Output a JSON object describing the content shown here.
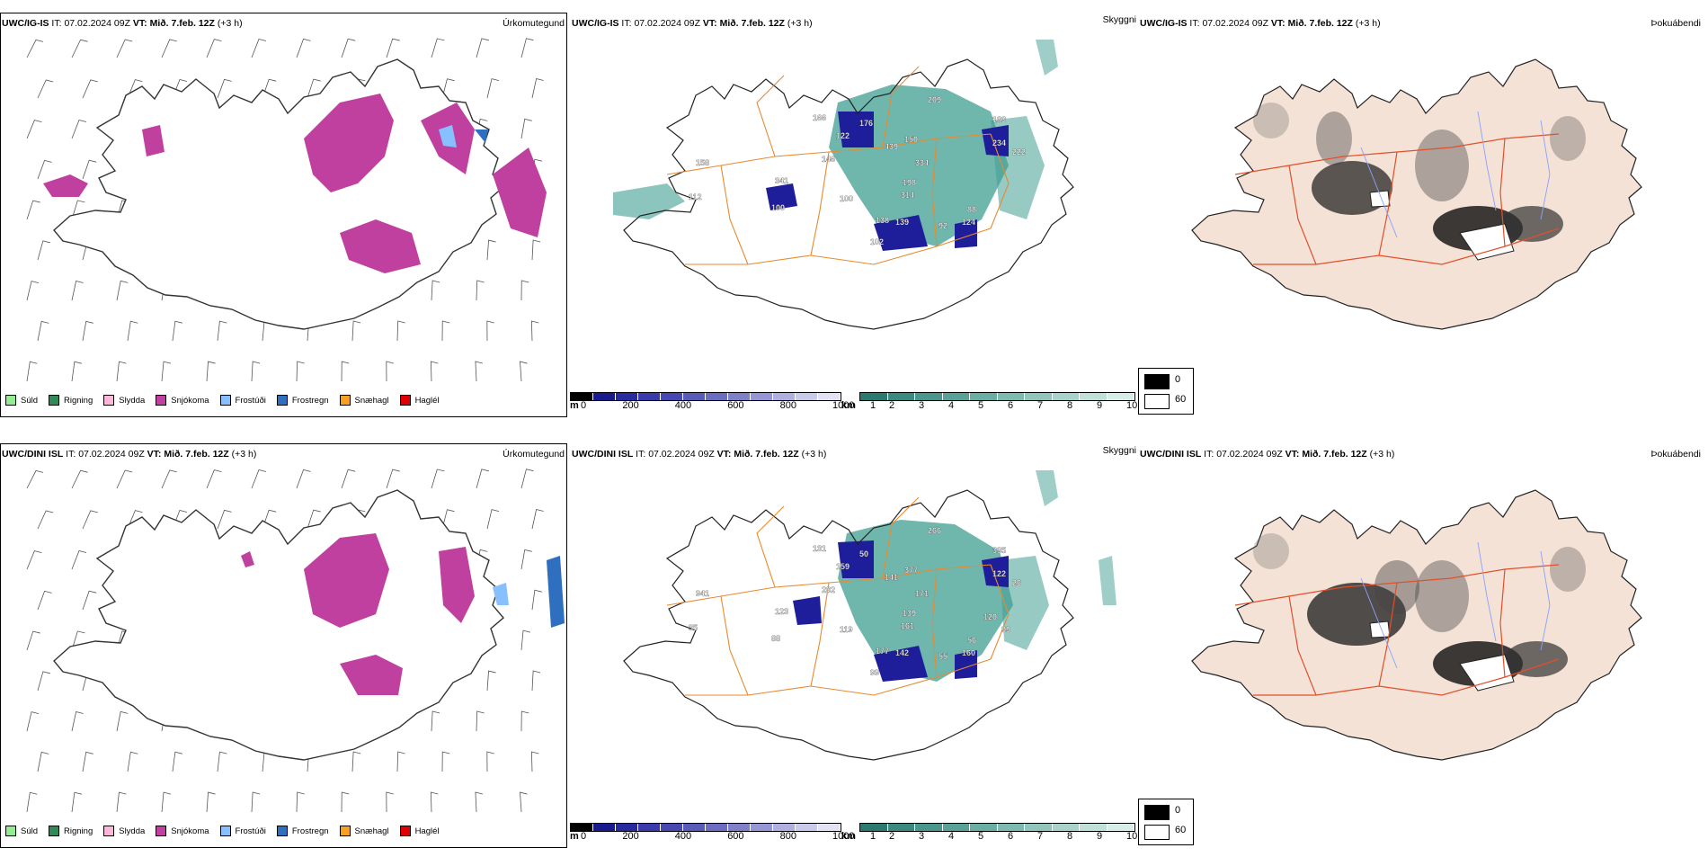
{
  "rows": [
    {
      "model": "UWC/IG-IS",
      "it_label": "IT:",
      "it_value": "07.02.2024 09Z",
      "vt_label": "VT:",
      "vt_value": "Mið. 7.feb. 12Z",
      "lead": "(+3 h)"
    },
    {
      "model": "UWC/DINI ISL",
      "it_label": "IT:",
      "it_value": "07.02.2024 09Z",
      "vt_label": "VT:",
      "vt_value": "Mið. 7.feb. 12Z",
      "lead": "(+3 h)"
    }
  ],
  "panel_titles": {
    "precip_type": "Úrkomutegund",
    "cloud_base": "Skyggni",
    "fog": "Þokuábendi"
  },
  "precip_legend": [
    {
      "label": "Súld",
      "color": "#90ee90"
    },
    {
      "label": "Rigning",
      "color": "#2e8b57"
    },
    {
      "label": "Slydda",
      "color": "#ffb6d9"
    },
    {
      "label": "Snjókoma",
      "color": "#c040a0"
    },
    {
      "label": "Frostúði",
      "color": "#87bfff"
    },
    {
      "label": "Frostregn",
      "color": "#2f6fbf"
    },
    {
      "label": "Snæhagl",
      "color": "#f7a020"
    },
    {
      "label": "Haglél",
      "color": "#e00000"
    }
  ],
  "altitude_bar": {
    "unit": "m",
    "ticks": [
      "0",
      "200",
      "400",
      "600",
      "800",
      "1000"
    ],
    "colors": [
      "#000000",
      "#1a1a8c",
      "#2a2aa0",
      "#3a3aaa",
      "#4848b0",
      "#5a5ab8",
      "#6c6cc0",
      "#8080c8",
      "#9696d4",
      "#b0b0e0",
      "#cacaea",
      "#e2e2f4"
    ]
  },
  "visibility_bar": {
    "unit": "km",
    "ticks": [
      "1",
      "2",
      "3",
      "4",
      "5",
      "6",
      "7",
      "8",
      "9",
      "10"
    ],
    "colors": [
      "#2a7a70",
      "#3a8a80",
      "#4a968c",
      "#5aa298",
      "#6aaea4",
      "#7ebab0",
      "#92c6bc",
      "#a8d2ca",
      "#c0e0d8",
      "#d8ece8"
    ]
  },
  "fog_legend": [
    {
      "label": "0",
      "color": "#000000"
    },
    {
      "label": "60",
      "color": "#ffffff"
    }
  ],
  "cloud_labels": [
    [
      "166",
      "122",
      "176",
      "439",
      "150",
      "209",
      "183",
      "146",
      "334",
      "198",
      "314",
      "341",
      "100",
      "138",
      "139",
      "124",
      "88",
      "102",
      "234",
      "222",
      "158",
      "112",
      "92",
      "100"
    ],
    [
      "131",
      "159",
      "50",
      "141",
      "377",
      "266",
      "335",
      "282",
      "171",
      "139",
      "161",
      "123",
      "88",
      "177",
      "142",
      "160",
      "56",
      "99",
      "122",
      "26",
      "941",
      "35",
      "55",
      "119",
      "120",
      "99"
    ]
  ],
  "colors": {
    "land_fog": "#f4e2d6",
    "roads_vis": "#e88a2e",
    "roads_fog": "#e0502a",
    "rivers": "#8aa0ff",
    "teal": "#3f9e92",
    "navy": "#1e1e9a",
    "magenta": "#c040a0"
  }
}
